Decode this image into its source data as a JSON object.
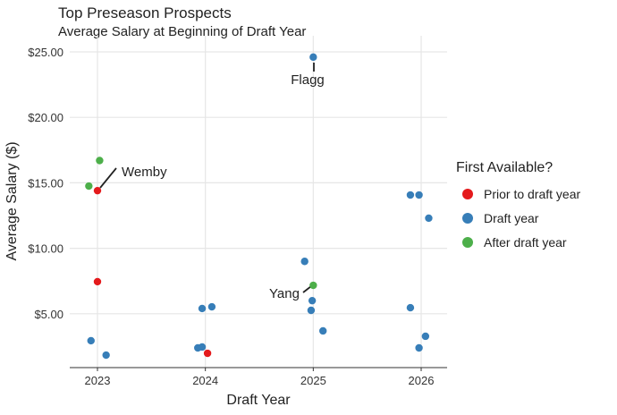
{
  "chart_data": {
    "type": "scatter",
    "title": "Top Preseason Prospects",
    "subtitle": "Average Salary at Beginning of Draft Year",
    "xlabel": "Draft Year",
    "ylabel": "Average Salary ($)",
    "xlim": [
      2022.75,
      2026.25
    ],
    "ylim": [
      0.9,
      26.3
    ],
    "x_ticks": [
      2023,
      2024,
      2025,
      2026
    ],
    "x_tick_labels": [
      "2023",
      "2024",
      "2025",
      "2026"
    ],
    "y_ticks": [
      5,
      10,
      15,
      20,
      25
    ],
    "y_tick_labels": [
      "$5.00",
      "$10.00",
      "$15.00",
      "$20.00",
      "$25.00"
    ],
    "grid": true,
    "legend": {
      "title": "First Available?",
      "placement": "right",
      "entries": [
        {
          "label": "Prior to draft year",
          "color": "#E41A1C"
        },
        {
          "label": "Draft year",
          "color": "#377EB8"
        },
        {
          "label": "After draft year",
          "color": "#4DAF4A"
        }
      ]
    },
    "series": [
      {
        "name": "Prior to draft year",
        "color": "#E41A1C",
        "points": [
          [
            2023.0,
            14.4
          ],
          [
            2023.0,
            7.45
          ],
          [
            2024.02,
            1.98
          ]
        ]
      },
      {
        "name": "Draft year",
        "color": "#377EB8",
        "points": [
          [
            2022.94,
            2.94
          ],
          [
            2023.08,
            1.84
          ],
          [
            2023.97,
            5.4
          ],
          [
            2024.06,
            5.53
          ],
          [
            2023.93,
            2.39
          ],
          [
            2023.97,
            2.46
          ],
          [
            2025.0,
            24.6
          ],
          [
            2024.92,
            9.0
          ],
          [
            2024.99,
            6.0
          ],
          [
            2024.98,
            5.26
          ],
          [
            2025.09,
            3.69
          ],
          [
            2025.9,
            14.07
          ],
          [
            2025.98,
            14.07
          ],
          [
            2026.07,
            12.3
          ],
          [
            2025.9,
            5.46
          ],
          [
            2026.04,
            3.28
          ],
          [
            2025.98,
            2.39
          ]
        ]
      },
      {
        "name": "After draft year",
        "color": "#4DAF4A",
        "points": [
          [
            2022.92,
            14.75
          ],
          [
            2023.02,
            16.7
          ],
          [
            2025.0,
            7.17
          ]
        ]
      }
    ],
    "annotations": [
      {
        "label": "Wemby",
        "x": 2023.0,
        "y": 14.4
      },
      {
        "label": "Flagg",
        "x": 2025.0,
        "y": 24.6
      },
      {
        "label": "Yang",
        "x": 2025.0,
        "y": 7.17
      }
    ]
  }
}
